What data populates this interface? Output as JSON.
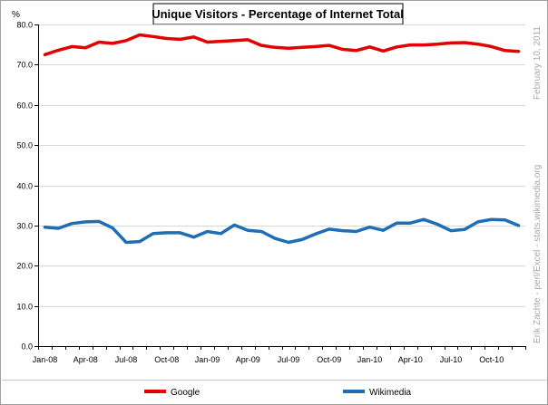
{
  "chart_data": {
    "type": "line",
    "title": "Unique Visitors - Percentage of Internet Total",
    "ylabel": "%",
    "xlabel": "",
    "ylim": [
      0,
      80
    ],
    "y_ticks": [
      "0.0",
      "10.0",
      "20.0",
      "30.0",
      "40.0",
      "50.0",
      "60.0",
      "70.0",
      "80.0"
    ],
    "x": [
      "Jan-08",
      "Feb-08",
      "Mar-08",
      "Apr-08",
      "May-08",
      "Jun-08",
      "Jul-08",
      "Aug-08",
      "Sep-08",
      "Oct-08",
      "Nov-08",
      "Dec-08",
      "Jan-09",
      "Feb-09",
      "Mar-09",
      "Apr-09",
      "May-09",
      "Jun-09",
      "Jul-09",
      "Aug-09",
      "Sep-09",
      "Oct-09",
      "Nov-09",
      "Dec-09",
      "Jan-10",
      "Feb-10",
      "Mar-10",
      "Apr-10",
      "May-10",
      "Jun-10",
      "Jul-10",
      "Aug-10",
      "Sep-10",
      "Oct-10",
      "Nov-10",
      "Dec-10"
    ],
    "x_tick_labels": [
      "Jan-08",
      "Apr-08",
      "Jul-08",
      "Oct-08",
      "Jan-09",
      "Apr-09",
      "Jul-09",
      "Oct-09",
      "Jan-10",
      "Apr-10",
      "Jul-10",
      "Oct-10"
    ],
    "grid": "horizontal",
    "legend_position": "bottom",
    "series": [
      {
        "name": "Google",
        "color": "#e30000",
        "values": [
          72.5,
          73.6,
          74.5,
          74.2,
          75.6,
          75.3,
          76.0,
          77.4,
          77.0,
          76.5,
          76.3,
          76.9,
          75.6,
          75.8,
          76.0,
          76.2,
          74.8,
          74.3,
          74.1,
          74.3,
          74.5,
          74.8,
          73.8,
          73.5,
          74.4,
          73.4,
          74.4,
          74.9,
          74.9,
          75.1,
          75.4,
          75.5,
          75.1,
          74.5,
          73.5,
          73.3
        ]
      },
      {
        "name": "Wikimedia",
        "color": "#1f6eb5",
        "values": [
          29.6,
          29.3,
          30.5,
          30.9,
          31.0,
          29.4,
          25.8,
          26.0,
          28.0,
          28.2,
          28.2,
          27.1,
          28.5,
          28.0,
          30.1,
          28.8,
          28.5,
          26.8,
          25.8,
          26.5,
          27.9,
          29.1,
          28.7,
          28.5,
          29.6,
          28.8,
          30.6,
          30.6,
          31.5,
          30.3,
          28.7,
          29.0,
          30.9,
          31.5,
          31.4,
          30.0
        ]
      }
    ]
  },
  "side_texts": {
    "date": "February 10, 2011",
    "credit": "Erik Zachte  -  perl/Excel  -  stats.wikimedia.org"
  }
}
